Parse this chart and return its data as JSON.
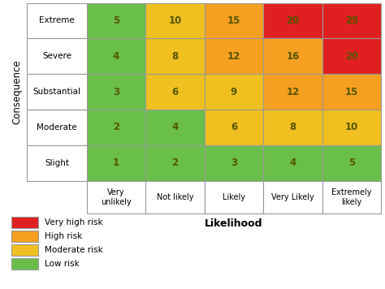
{
  "rows": [
    "Extreme",
    "Severe",
    "Substantial",
    "Moderate",
    "Slight"
  ],
  "cols": [
    "Very\nunlikely",
    "Not likely",
    "Likely",
    "Very Likely",
    "Extremely\nlikely"
  ],
  "values": [
    [
      5,
      10,
      15,
      20,
      25
    ],
    [
      4,
      8,
      12,
      16,
      20
    ],
    [
      3,
      6,
      9,
      12,
      15
    ],
    [
      2,
      4,
      6,
      8,
      10
    ],
    [
      1,
      2,
      3,
      4,
      5
    ]
  ],
  "colors": [
    [
      "#6abf4b",
      "#f0c020",
      "#f5a020",
      "#e02020",
      "#e02020"
    ],
    [
      "#6abf4b",
      "#f0c020",
      "#f5a020",
      "#f5a020",
      "#e02020"
    ],
    [
      "#6abf4b",
      "#f0c020",
      "#f0c020",
      "#f5a020",
      "#f5a020"
    ],
    [
      "#6abf4b",
      "#6abf4b",
      "#f0c020",
      "#f0c020",
      "#f0c020"
    ],
    [
      "#6abf4b",
      "#6abf4b",
      "#6abf4b",
      "#6abf4b",
      "#6abf4b"
    ]
  ],
  "legend": [
    {
      "label": "Very high risk",
      "color": "#e02020"
    },
    {
      "label": "High risk",
      "color": "#f5a020"
    },
    {
      "label": "Moderate risk",
      "color": "#f0c020"
    },
    {
      "label": "Low risk",
      "color": "#6abf4b"
    }
  ],
  "xlabel": "Likelihood",
  "ylabel": "Consequence",
  "grid_color": "#999999",
  "bg_color": "#ffffff",
  "text_color": "#555500"
}
